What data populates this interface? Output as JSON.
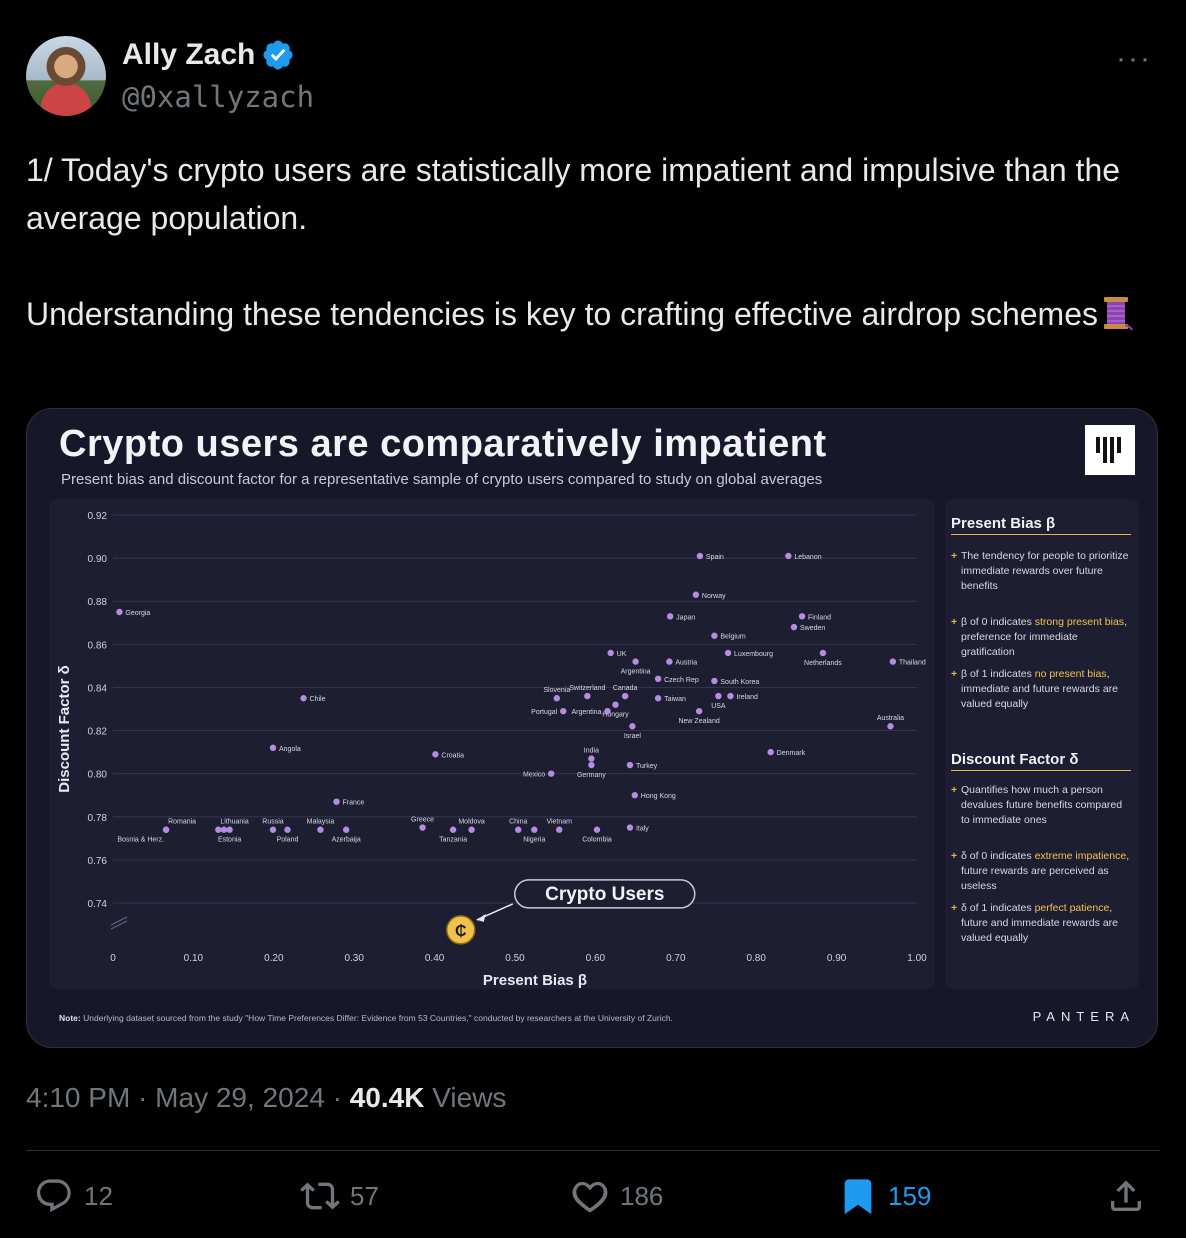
{
  "author": {
    "name": "Ally Zach",
    "handle": "@0xallyzach"
  },
  "tweet": {
    "line1": "1/ Today's crypto users are statistically more impatient and impulsive than the average population.",
    "line2": "Understanding these tendencies is key to crafting effective airdrop schemes"
  },
  "card": {
    "title": "Crypto users are comparatively impatient",
    "subtitle": "Present bias and discount factor for a representative sample of crypto users compared to study on global averages",
    "side": {
      "present_heading": "Present Bias β",
      "present_items": [
        {
          "pre": "The tendency for people to prioritize immediate rewards over future benefits",
          "hl": "",
          "post": ""
        },
        {
          "pre": "β of 0 indicates ",
          "hl": "strong present bias",
          "post": ", preference for immediate gratification"
        },
        {
          "pre": "β of 1 indicates ",
          "hl": "no present bias",
          "post": ", immediate and future rewards are valued equally"
        }
      ],
      "discount_heading": "Discount Factor δ",
      "discount_items": [
        {
          "pre": "Quantifies how much a person devalues future benefits compared to immediate ones",
          "hl": "",
          "post": ""
        },
        {
          "pre": "δ of 0 indicates ",
          "hl": "extreme impatience",
          "post": ", future rewards are perceived as useless"
        },
        {
          "pre": "δ of 1 indicates ",
          "hl": "perfect patience",
          "post": ", future and immediate rewards are valued equally"
        }
      ]
    },
    "note_label": "Note:",
    "note_text": "Underlying dataset sourced from the study \"How Time Preferences Differ: Evidence from 53 Countries,\" conducted by researchers at the University of Zurich.",
    "brand": "PANTERA"
  },
  "chart_data": {
    "type": "scatter",
    "title": "Crypto users are comparatively impatient",
    "xlabel": "Present Bias β",
    "ylabel": "Discount Factor δ",
    "xlim": [
      0,
      1.0
    ],
    "ylim": [
      0.74,
      0.92
    ],
    "xticks": [
      "0",
      "0.10",
      "0.20",
      "0.30",
      "0.40",
      "0.50",
      "0.60",
      "0.70",
      "0.80",
      "0.90",
      "1.00"
    ],
    "yticks": [
      "0.74",
      "0.76",
      "0.78",
      "0.80",
      "0.82",
      "0.84",
      "0.86",
      "0.88",
      "0.90",
      "0.92"
    ],
    "grid": true,
    "points": [
      {
        "label": "Georgia",
        "x": 0.008,
        "y": 0.875,
        "pos": "r"
      },
      {
        "label": "Spain",
        "x": 0.73,
        "y": 0.901,
        "pos": "r"
      },
      {
        "label": "Lebanon",
        "x": 0.84,
        "y": 0.901,
        "pos": "r"
      },
      {
        "label": "Norway",
        "x": 0.725,
        "y": 0.883,
        "pos": "r"
      },
      {
        "label": "Japan",
        "x": 0.693,
        "y": 0.873,
        "pos": "r"
      },
      {
        "label": "Finland",
        "x": 0.857,
        "y": 0.873,
        "pos": "r"
      },
      {
        "label": "Sweden",
        "x": 0.847,
        "y": 0.868,
        "pos": "r"
      },
      {
        "label": "Belgium",
        "x": 0.748,
        "y": 0.864,
        "pos": "r"
      },
      {
        "label": "UK",
        "x": 0.619,
        "y": 0.856,
        "pos": "r"
      },
      {
        "label": "Luxembourg",
        "x": 0.765,
        "y": 0.856,
        "pos": "r"
      },
      {
        "label": "Netherlands",
        "x": 0.883,
        "y": 0.856,
        "pos": "b"
      },
      {
        "label": "Argentina",
        "x": 0.65,
        "y": 0.852,
        "pos": "b"
      },
      {
        "label": "Austria",
        "x": 0.692,
        "y": 0.852,
        "pos": "r"
      },
      {
        "label": "Thailand",
        "x": 0.97,
        "y": 0.852,
        "pos": "r"
      },
      {
        "label": "Czech Rep",
        "x": 0.678,
        "y": 0.844,
        "pos": "r"
      },
      {
        "label": "South Korea",
        "x": 0.748,
        "y": 0.843,
        "pos": "r"
      },
      {
        "label": "Chile",
        "x": 0.237,
        "y": 0.835,
        "pos": "r"
      },
      {
        "label": "Slovenia",
        "x": 0.552,
        "y": 0.835,
        "pos": "t"
      },
      {
        "label": "Switzerland",
        "x": 0.59,
        "y": 0.836,
        "pos": "t"
      },
      {
        "label": "Canada",
        "x": 0.637,
        "y": 0.836,
        "pos": "t"
      },
      {
        "label": "Taiwan",
        "x": 0.678,
        "y": 0.835,
        "pos": "r"
      },
      {
        "label": "Ireland",
        "x": 0.768,
        "y": 0.836,
        "pos": "r"
      },
      {
        "label": "Hungary",
        "x": 0.625,
        "y": 0.832,
        "pos": "b"
      },
      {
        "label": "USA",
        "x": 0.753,
        "y": 0.836,
        "pos": "b"
      },
      {
        "label": "Portugal",
        "x": 0.56,
        "y": 0.829,
        "pos": "l"
      },
      {
        "label": "Argentina",
        "x": 0.615,
        "y": 0.829,
        "pos": "l"
      },
      {
        "label": "New Zealand",
        "x": 0.729,
        "y": 0.829,
        "pos": "b"
      },
      {
        "label": "Australia",
        "x": 0.967,
        "y": 0.822,
        "pos": "t"
      },
      {
        "label": "Israel",
        "x": 0.646,
        "y": 0.822,
        "pos": "b"
      },
      {
        "label": "Angola",
        "x": 0.199,
        "y": 0.812,
        "pos": "r"
      },
      {
        "label": "Croatia",
        "x": 0.401,
        "y": 0.809,
        "pos": "r"
      },
      {
        "label": "Denmark",
        "x": 0.818,
        "y": 0.81,
        "pos": "r"
      },
      {
        "label": "India",
        "x": 0.595,
        "y": 0.807,
        "pos": "t"
      },
      {
        "label": "Turkey",
        "x": 0.643,
        "y": 0.804,
        "pos": "r"
      },
      {
        "label": "Germany",
        "x": 0.595,
        "y": 0.804,
        "pos": "b"
      },
      {
        "label": "Mexico",
        "x": 0.545,
        "y": 0.8,
        "pos": "l"
      },
      {
        "label": "Hong Kong",
        "x": 0.649,
        "y": 0.79,
        "pos": "r"
      },
      {
        "label": "France",
        "x": 0.278,
        "y": 0.787,
        "pos": "r"
      },
      {
        "label": "Romania",
        "x": 0.066,
        "y": 0.774,
        "pos": "tr"
      },
      {
        "label": "Bosnia & Herz.",
        "x": 0.066,
        "y": 0.774,
        "pos": "bl"
      },
      {
        "label": "Lithuania",
        "x": 0.131,
        "y": 0.774,
        "pos": "tr"
      },
      {
        "label": "Estonia",
        "x": 0.138,
        "y": 0.774,
        "pos": "bl2"
      },
      {
        "label": "",
        "x": 0.145,
        "y": 0.774,
        "pos": "n"
      },
      {
        "label": "Russia",
        "x": 0.199,
        "y": 0.774,
        "pos": "t"
      },
      {
        "label": "Poland",
        "x": 0.217,
        "y": 0.774,
        "pos": "b"
      },
      {
        "label": "Malaysia",
        "x": 0.258,
        "y": 0.774,
        "pos": "t"
      },
      {
        "label": "Azerbaija",
        "x": 0.29,
        "y": 0.774,
        "pos": "b"
      },
      {
        "label": "Greece",
        "x": 0.385,
        "y": 0.775,
        "pos": "t"
      },
      {
        "label": "Tanzania",
        "x": 0.423,
        "y": 0.774,
        "pos": "b"
      },
      {
        "label": "Moldova",
        "x": 0.446,
        "y": 0.774,
        "pos": "t"
      },
      {
        "label": "China",
        "x": 0.504,
        "y": 0.774,
        "pos": "t"
      },
      {
        "label": "Nigeria",
        "x": 0.524,
        "y": 0.774,
        "pos": "b"
      },
      {
        "label": "Vietnam",
        "x": 0.555,
        "y": 0.774,
        "pos": "t"
      },
      {
        "label": "Colombia",
        "x": 0.602,
        "y": 0.774,
        "pos": "b"
      },
      {
        "label": "Italy",
        "x": 0.643,
        "y": 0.775,
        "pos": "r"
      }
    ],
    "highlight": {
      "label": "Crypto Users",
      "x": 0.44,
      "y": 0.734
    }
  },
  "footer": {
    "time": "4:10 PM",
    "date": "May 29, 2024",
    "views_count": "40.4K",
    "views_label": "Views"
  },
  "actions": {
    "replies": "12",
    "reposts": "57",
    "likes": "186",
    "bookmarks": "159"
  },
  "colors": {
    "accent": "#1d9bf0",
    "point": "#b48ce0",
    "highlight": "#f1c24b"
  }
}
